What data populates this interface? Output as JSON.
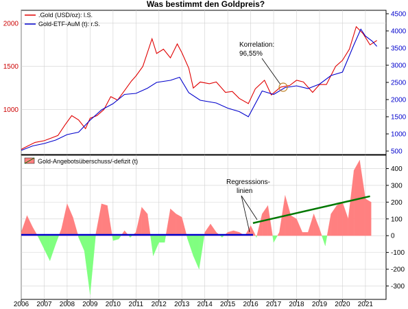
{
  "colors": {
    "gold": "#e00000",
    "etf": "#0000cc",
    "surplus": "#ff8080",
    "deficit": "#80ff80",
    "regression": "#0000cc",
    "regression_upper": "#007700",
    "grid": "#d0d0d0",
    "annotation_circle": "#f0c060"
  },
  "chart_data": [
    {
      "type": "line",
      "title": "Was bestimmt den Goldpreis?",
      "x_range": [
        2006,
        2021.9
      ],
      "ylim_left": [
        480,
        2150
      ],
      "ylim_right": [
        400,
        4600
      ],
      "yticks_left": [
        1000,
        1500,
        2000
      ],
      "yticks_right": [
        500,
        1000,
        1500,
        2000,
        2500,
        3000,
        3500,
        4000,
        4500
      ],
      "grid": true,
      "legend_position": "top-left",
      "series": [
        {
          "name": ".Gold (USD/oz): l.S.",
          "axis": "left",
          "x": [
            2006.0,
            2006.3,
            2006.6,
            2007.0,
            2007.3,
            2007.6,
            2007.9,
            2008.2,
            2008.5,
            2008.8,
            2009.0,
            2009.3,
            2009.6,
            2009.9,
            2010.2,
            2010.5,
            2010.8,
            2011.0,
            2011.3,
            2011.7,
            2011.9,
            2012.2,
            2012.5,
            2012.8,
            2013.0,
            2013.3,
            2013.5,
            2013.8,
            2014.2,
            2014.5,
            2014.9,
            2015.2,
            2015.5,
            2015.9,
            2016.2,
            2016.6,
            2016.9,
            2017.3,
            2017.7,
            2018.0,
            2018.3,
            2018.7,
            2019.0,
            2019.3,
            2019.7,
            2020.0,
            2020.3,
            2020.6,
            2020.9,
            2021.2,
            2021.5
          ],
          "values": [
            540,
            580,
            620,
            640,
            670,
            700,
            820,
            930,
            880,
            780,
            900,
            930,
            1000,
            1150,
            1110,
            1220,
            1330,
            1390,
            1500,
            1820,
            1650,
            1700,
            1600,
            1760,
            1660,
            1480,
            1250,
            1320,
            1300,
            1320,
            1200,
            1210,
            1130,
            1070,
            1240,
            1340,
            1170,
            1260,
            1280,
            1340,
            1320,
            1200,
            1290,
            1290,
            1500,
            1570,
            1700,
            1960,
            1880,
            1750,
            1800
          ]
        },
        {
          "name": "Gold-ETF-AuM (t): r.S.",
          "axis": "right",
          "x": [
            2006.0,
            2006.5,
            2007.0,
            2007.5,
            2008.0,
            2008.5,
            2009.0,
            2009.5,
            2010.0,
            2010.5,
            2011.0,
            2011.5,
            2011.9,
            2012.5,
            2012.9,
            2013.3,
            2013.8,
            2014.5,
            2015.0,
            2015.5,
            2015.9,
            2016.5,
            2017.0,
            2017.5,
            2018.0,
            2018.5,
            2019.0,
            2019.5,
            2020.0,
            2020.5,
            2020.8,
            2021.0,
            2021.3,
            2021.5
          ],
          "values": [
            520,
            650,
            720,
            820,
            980,
            1050,
            1400,
            1700,
            1880,
            2150,
            2180,
            2330,
            2500,
            2560,
            2650,
            2200,
            1980,
            1900,
            1750,
            1650,
            1500,
            2250,
            2150,
            2350,
            2400,
            2320,
            2450,
            2700,
            2800,
            3600,
            4050,
            3850,
            3700,
            3550
          ]
        }
      ],
      "annotations": [
        {
          "text": "Korrelation:",
          "x": 2016.9,
          "y_left": 1800
        },
        {
          "text": "96,55%",
          "x": 2016.9,
          "y_left": 1710
        }
      ]
    },
    {
      "type": "area",
      "x_range": [
        2006,
        2021.9
      ],
      "ylim": [
        -380,
        480
      ],
      "yticks": [
        -300,
        -200,
        -100,
        0,
        100,
        200,
        300,
        400
      ],
      "grid": true,
      "legend_position": "top-left",
      "xticks": [
        2006,
        2007,
        2008,
        2009,
        2010,
        2011,
        2012,
        2013,
        2014,
        2015,
        2016,
        2017,
        2018,
        2019,
        2020,
        2021
      ],
      "series": [
        {
          "name": "Gold-Angebotsüberschuss/-defizit (t)",
          "x": [
            2006.0,
            2006.25,
            2006.5,
            2006.75,
            2007.0,
            2007.25,
            2007.5,
            2007.75,
            2008.0,
            2008.25,
            2008.5,
            2008.75,
            2009.0,
            2009.25,
            2009.5,
            2009.75,
            2010.0,
            2010.25,
            2010.5,
            2010.75,
            2011.0,
            2011.25,
            2011.5,
            2011.75,
            2012.0,
            2012.25,
            2012.5,
            2012.75,
            2013.0,
            2013.25,
            2013.5,
            2013.75,
            2014.0,
            2014.25,
            2014.5,
            2014.75,
            2015.0,
            2015.25,
            2015.5,
            2015.75,
            2016.0,
            2016.25,
            2016.5,
            2016.75,
            2017.0,
            2017.25,
            2017.5,
            2017.75,
            2018.0,
            2018.25,
            2018.5,
            2018.75,
            2019.0,
            2019.25,
            2019.5,
            2019.75,
            2020.0,
            2020.25,
            2020.5,
            2020.75,
            2021.0,
            2021.25
          ],
          "values": [
            20,
            120,
            50,
            -10,
            -80,
            -150,
            -50,
            40,
            190,
            110,
            -10,
            -90,
            -350,
            10,
            190,
            180,
            -30,
            -20,
            30,
            -10,
            20,
            170,
            130,
            -120,
            -40,
            -40,
            160,
            130,
            110,
            -20,
            -120,
            -200,
            20,
            70,
            20,
            -10,
            20,
            30,
            20,
            0,
            60,
            -10,
            130,
            180,
            -40,
            20,
            240,
            120,
            100,
            20,
            20,
            130,
            40,
            -60,
            130,
            180,
            200,
            100,
            390,
            450,
            220,
            200
          ]
        },
        {
          "name": "Regresssions-linien",
          "x": [
            2006.0,
            2016.1
          ],
          "values": [
            5,
            5
          ]
        },
        {
          "name": "",
          "x": [
            2016.1,
            2021.2
          ],
          "values": [
            75,
            235
          ]
        }
      ],
      "annotations": [
        {
          "text": "Regresssions-",
          "x": 2016.7,
          "y": 300
        },
        {
          "text": "linien",
          "x": 2016.7,
          "y": 255
        }
      ]
    }
  ]
}
